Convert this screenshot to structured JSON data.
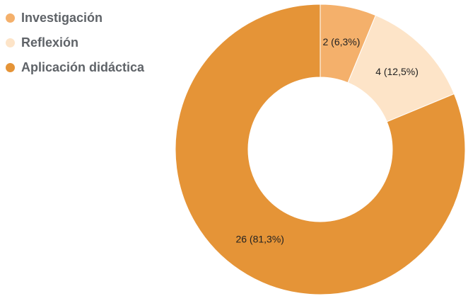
{
  "chart_data": {
    "type": "pie",
    "donut": true,
    "legend_position": "top-left",
    "categories": [
      "Investigación",
      "Reflexión",
      "Aplicación didáctica"
    ],
    "values": [
      2,
      4,
      26
    ],
    "labels": [
      "2 (6,3%)",
      "4 (12,5%)",
      "26 (81,3%)"
    ],
    "colors": [
      "#f4b06b",
      "#fde4c8",
      "#e59437"
    ]
  }
}
